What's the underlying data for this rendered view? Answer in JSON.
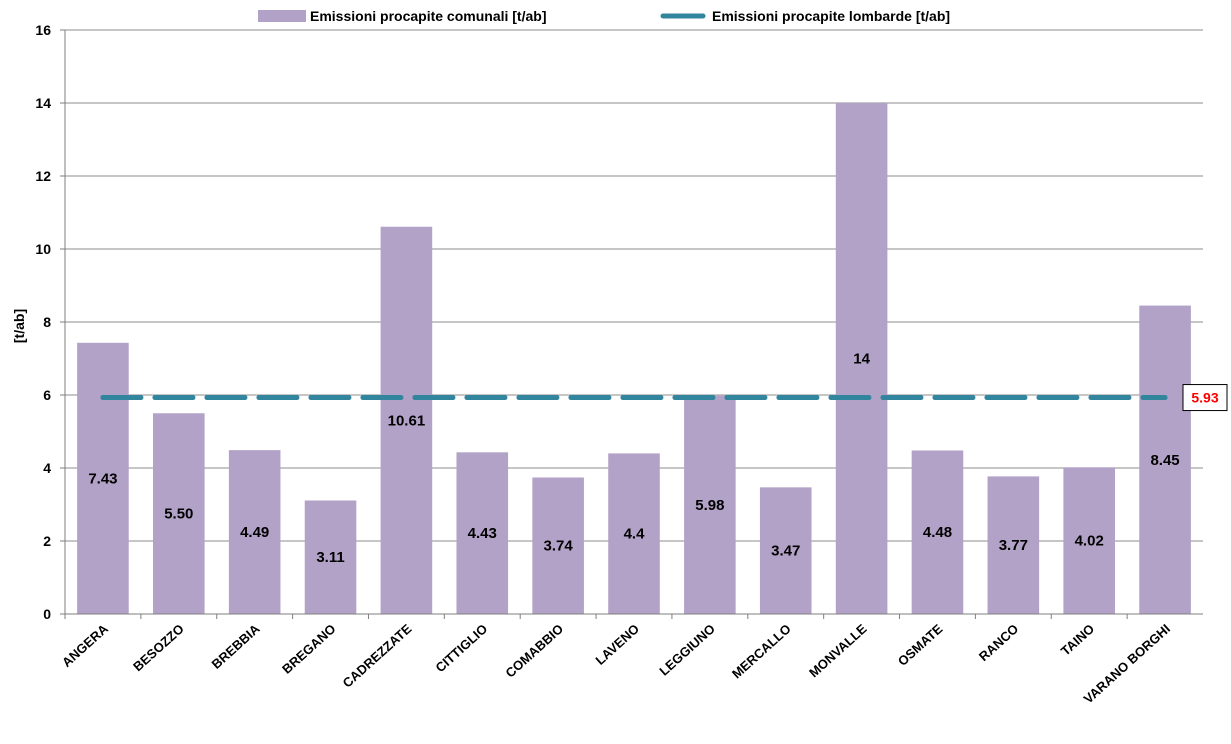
{
  "chart_data": {
    "type": "bar",
    "ylabel": "[t/ab]",
    "ylim": [
      0,
      16
    ],
    "yticks": [
      0,
      2,
      4,
      6,
      8,
      10,
      12,
      14,
      16
    ],
    "grid": true,
    "legend_position": "top",
    "categories": [
      "ANGERA",
      "BESOZZO",
      "BREBBIA",
      "BREGANO",
      "CADREZZATE",
      "CITTIGLIO",
      "COMABBIO",
      "LAVENO",
      "LEGGIUNO",
      "MERCALLO",
      "MONVALLE",
      "OSMATE",
      "RANCO",
      "TAINO",
      "VARANO BORGHI"
    ],
    "series": [
      {
        "name": "Emissioni procapite comunali [t/ab]",
        "values": [
          7.43,
          5.5,
          4.49,
          3.11,
          10.61,
          4.43,
          3.74,
          4.4,
          5.98,
          3.47,
          14,
          4.48,
          3.77,
          4.02,
          8.45
        ],
        "data_labels": [
          "7.43",
          "5.50",
          "4.49",
          "3.11",
          "10.61",
          "4.43",
          "3.74",
          "4.4",
          "5.98",
          "3.47",
          "14",
          "4.48",
          "3.77",
          "4.02",
          "8.45"
        ],
        "color": "#b3a2c7"
      }
    ],
    "reference_line": {
      "name": "Emissioni procapite lombarde [t/ab]",
      "value": 5.93,
      "label": "5.93",
      "color": "#31859c",
      "label_color": "#ff0000",
      "style": "dashed"
    }
  }
}
